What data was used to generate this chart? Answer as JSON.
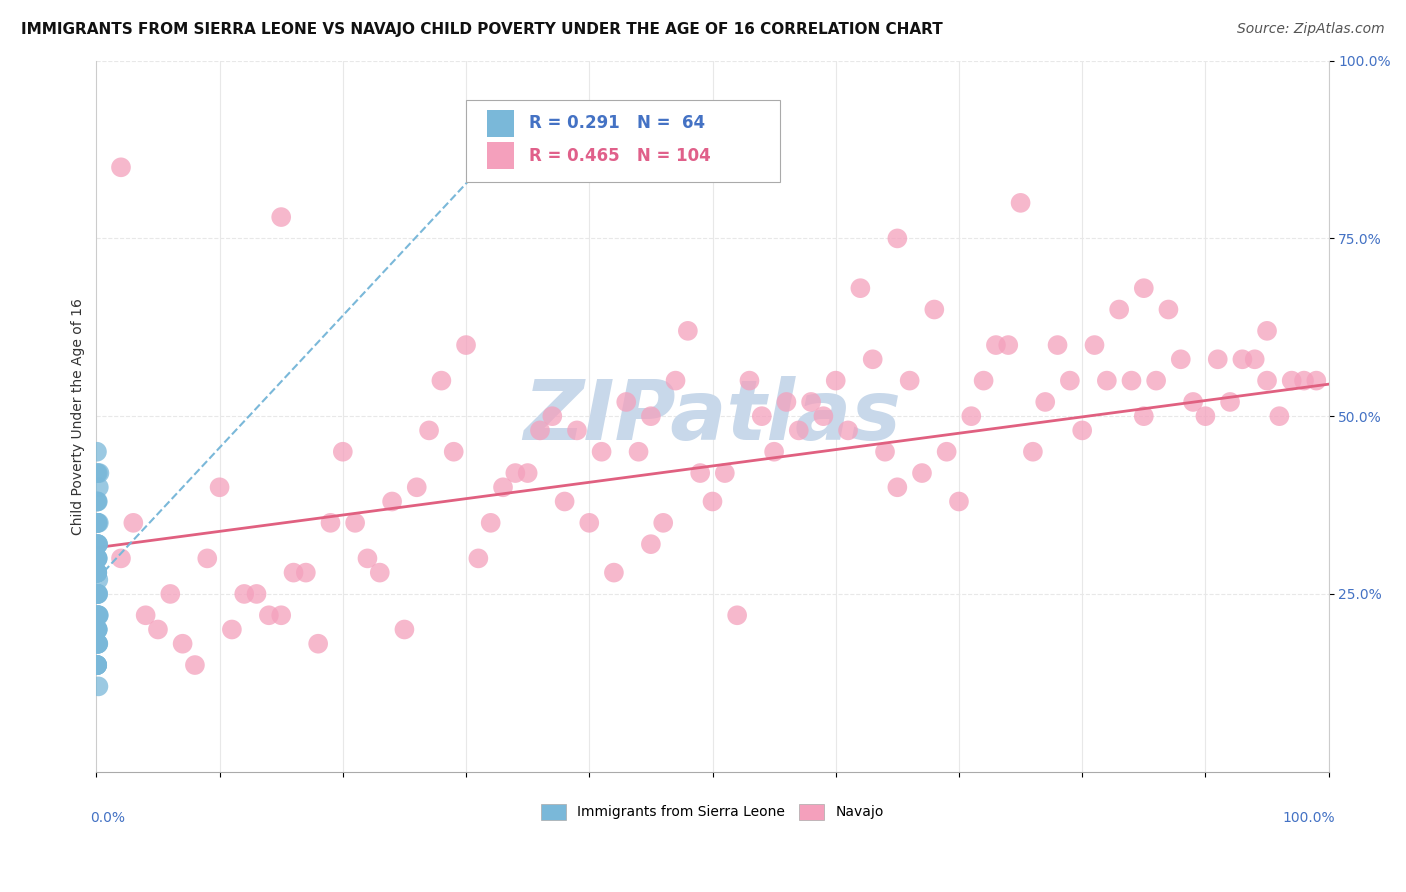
{
  "title": "IMMIGRANTS FROM SIERRA LEONE VS NAVAJO CHILD POVERTY UNDER THE AGE OF 16 CORRELATION CHART",
  "source": "Source: ZipAtlas.com",
  "ylabel": "Child Poverty Under the Age of 16",
  "ytick_labels": [
    "100.0%",
    "75.0%",
    "50.0%",
    "25.0%"
  ],
  "ytick_values": [
    1.0,
    0.75,
    0.5,
    0.25
  ],
  "xlim": [
    0,
    1.0
  ],
  "ylim": [
    0,
    1.0
  ],
  "watermark": "ZIPatlas",
  "blue_series": {
    "name": "Immigrants from Sierra Leone",
    "R": 0.291,
    "N": 64,
    "color": "#7ab8d9",
    "trend_color": "#7ab8d9",
    "trend_style": "dashed",
    "scatter_x": [
      0.0005,
      0.001,
      0.0008,
      0.0015,
      0.002,
      0.0012,
      0.0006,
      0.0025,
      0.0018,
      0.001,
      0.0004,
      0.0007,
      0.0011,
      0.0016,
      0.0009,
      0.002,
      0.0013,
      0.0017,
      0.0005,
      0.001,
      0.0006,
      0.0012,
      0.0004,
      0.0008,
      0.0015,
      0.0011,
      0.0007,
      0.002,
      0.0013,
      0.0005,
      0.0003,
      0.0014,
      0.001,
      0.0006,
      0.0012,
      0.0005,
      0.0007,
      0.0011,
      0.0016,
      0.0008,
      0.0004,
      0.001,
      0.0006,
      0.0005,
      0.0012,
      0.0007,
      0.0015,
      0.001,
      0.0006,
      0.0004,
      0.0003,
      0.001,
      0.0007,
      0.0004,
      0.001,
      0.0006,
      0.0005,
      0.001,
      0.0006,
      0.0004,
      0.0003,
      0.0005,
      0.0004,
      0.0006
    ],
    "scatter_y": [
      0.3,
      0.35,
      0.28,
      0.32,
      0.4,
      0.38,
      0.25,
      0.42,
      0.22,
      0.18,
      0.2,
      0.15,
      0.3,
      0.27,
      0.22,
      0.35,
      0.18,
      0.12,
      0.45,
      0.32,
      0.28,
      0.2,
      0.15,
      0.38,
      0.25,
      0.3,
      0.35,
      0.22,
      0.18,
      0.28,
      0.32,
      0.25,
      0.2,
      0.15,
      0.42,
      0.35,
      0.28,
      0.22,
      0.18,
      0.3,
      0.38,
      0.25,
      0.2,
      0.15,
      0.32,
      0.28,
      0.22,
      0.18,
      0.35,
      0.3,
      0.25,
      0.2,
      0.15,
      0.42,
      0.32,
      0.28,
      0.22,
      0.35,
      0.18,
      0.25,
      0.3,
      0.15,
      0.2,
      0.28
    ],
    "trend_x": [
      0.0,
      0.35
    ],
    "trend_y": [
      0.27,
      0.92
    ]
  },
  "pink_series": {
    "name": "Navajo",
    "R": 0.465,
    "N": 104,
    "color": "#f4a0bc",
    "trend_color": "#e06080",
    "trend_style": "solid",
    "scatter_x": [
      0.02,
      0.05,
      0.08,
      0.12,
      0.15,
      0.18,
      0.22,
      0.25,
      0.28,
      0.32,
      0.35,
      0.38,
      0.42,
      0.45,
      0.48,
      0.52,
      0.55,
      0.58,
      0.62,
      0.65,
      0.68,
      0.72,
      0.75,
      0.78,
      0.82,
      0.85,
      0.88,
      0.92,
      0.95,
      0.98,
      0.03,
      0.07,
      0.1,
      0.14,
      0.17,
      0.2,
      0.24,
      0.27,
      0.3,
      0.34,
      0.37,
      0.4,
      0.44,
      0.47,
      0.5,
      0.54,
      0.57,
      0.6,
      0.64,
      0.67,
      0.7,
      0.74,
      0.77,
      0.8,
      0.84,
      0.87,
      0.9,
      0.94,
      0.97,
      0.99,
      0.06,
      0.11,
      0.16,
      0.21,
      0.26,
      0.31,
      0.36,
      0.41,
      0.46,
      0.51,
      0.56,
      0.61,
      0.66,
      0.71,
      0.76,
      0.81,
      0.86,
      0.91,
      0.96,
      0.04,
      0.09,
      0.13,
      0.19,
      0.23,
      0.29,
      0.33,
      0.39,
      0.43,
      0.49,
      0.53,
      0.59,
      0.63,
      0.69,
      0.73,
      0.79,
      0.83,
      0.89,
      0.93,
      0.02,
      0.95,
      0.15,
      0.45,
      0.65,
      0.85
    ],
    "scatter_y": [
      0.3,
      0.2,
      0.15,
      0.25,
      0.22,
      0.18,
      0.3,
      0.2,
      0.55,
      0.35,
      0.42,
      0.38,
      0.28,
      0.32,
      0.62,
      0.22,
      0.45,
      0.52,
      0.68,
      0.4,
      0.65,
      0.55,
      0.8,
      0.6,
      0.55,
      0.5,
      0.58,
      0.52,
      0.55,
      0.55,
      0.35,
      0.18,
      0.4,
      0.22,
      0.28,
      0.45,
      0.38,
      0.48,
      0.6,
      0.42,
      0.5,
      0.35,
      0.45,
      0.55,
      0.38,
      0.5,
      0.48,
      0.55,
      0.45,
      0.42,
      0.38,
      0.6,
      0.52,
      0.48,
      0.55,
      0.65,
      0.5,
      0.58,
      0.55,
      0.55,
      0.25,
      0.2,
      0.28,
      0.35,
      0.4,
      0.3,
      0.48,
      0.45,
      0.35,
      0.42,
      0.52,
      0.48,
      0.55,
      0.5,
      0.45,
      0.6,
      0.55,
      0.58,
      0.5,
      0.22,
      0.3,
      0.25,
      0.35,
      0.28,
      0.45,
      0.4,
      0.48,
      0.52,
      0.42,
      0.55,
      0.5,
      0.58,
      0.45,
      0.6,
      0.55,
      0.65,
      0.52,
      0.58,
      0.85,
      0.62,
      0.78,
      0.5,
      0.75,
      0.68
    ],
    "trend_x": [
      0.0,
      1.0
    ],
    "trend_y": [
      0.315,
      0.545
    ]
  },
  "title_fontsize": 11,
  "source_fontsize": 10,
  "label_fontsize": 10,
  "legend_fontsize": 12,
  "watermark_fontsize": 60,
  "watermark_color": "#c8d8ea",
  "background_color": "#ffffff",
  "grid_color": "#e8e8e8",
  "axis_color": "#4472c4"
}
